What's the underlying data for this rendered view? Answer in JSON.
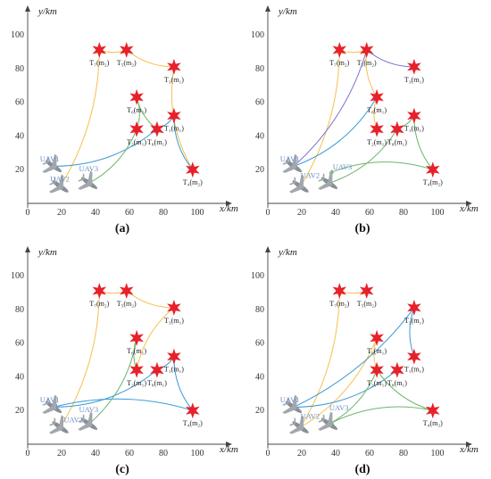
{
  "axes": {
    "xlabel": "x/km",
    "ylabel": "y/km",
    "xticks": [
      0,
      20,
      40,
      60,
      80,
      100
    ],
    "yticks": [
      20,
      40,
      60,
      80,
      100
    ]
  },
  "targets": [
    {
      "id": "T7",
      "label": "T₇(m₂)",
      "x": 37,
      "y": 91
    },
    {
      "id": "T5",
      "label": "T₅(m₂)",
      "x": 53,
      "y": 91
    },
    {
      "id": "T3",
      "label": "T₃(m₁)",
      "x": 81,
      "y": 81
    },
    {
      "id": "T6",
      "label": "T₆(m₁)",
      "x": 59,
      "y": 63
    },
    {
      "id": "T1",
      "label": "T₁(m₁)",
      "x": 81,
      "y": 52
    },
    {
      "id": "T2",
      "label": "T₂(m₁)",
      "x": 59,
      "y": 44
    },
    {
      "id": "T8",
      "label": "T₈(m₁)",
      "x": 71,
      "y": 44
    },
    {
      "id": "T4",
      "label": "T₄(m₂)",
      "x": 92,
      "y": 20
    }
  ],
  "uavs": [
    {
      "id": "U1",
      "label": "UAV1",
      "x": 10,
      "y": 22
    },
    {
      "id": "U2",
      "label": "UAV2",
      "x": 14,
      "y": 10
    },
    {
      "id": "U3",
      "label": "UAV3",
      "x": 31,
      "y": 12
    }
  ],
  "colors": {
    "yellow": "#f5c04a",
    "blue": "#3a9ad9",
    "green": "#6bb56b",
    "purple": "#7b6fd1",
    "star": "#e8202a"
  },
  "panels": [
    {
      "caption": "(a)",
      "uav_labels": [
        {
          "text": "UAV1",
          "x": 2,
          "y": 25
        },
        {
          "text": "UAV2",
          "x": 8,
          "y": 13
        },
        {
          "text": "UAV3",
          "x": 25,
          "y": 19
        }
      ],
      "routes": [
        {
          "color": "yellow",
          "pts": [
            [
              14,
              10
            ],
            [
              37,
              91
            ],
            [
              53,
              91
            ],
            [
              81,
              81
            ],
            [
              92,
              20
            ]
          ]
        },
        {
          "color": "blue",
          "pts": [
            [
              10,
              22
            ],
            [
              71,
              44
            ],
            [
              81,
              52
            ],
            [
              92,
              20
            ]
          ]
        },
        {
          "color": "green",
          "pts": [
            [
              31,
              12
            ],
            [
              59,
              44
            ],
            [
              59,
              63
            ],
            [
              71,
              44
            ]
          ]
        }
      ]
    },
    {
      "caption": "(b)",
      "uav_labels": [
        {
          "text": "UAV1",
          "x": 2,
          "y": 25
        },
        {
          "text": "UAV2",
          "x": 14,
          "y": 15
        },
        {
          "text": "UAV3",
          "x": 33,
          "y": 20
        }
      ],
      "routes": [
        {
          "color": "yellow",
          "pts": [
            [
              14,
              10
            ],
            [
              37,
              91
            ],
            [
              53,
              91
            ],
            [
              59,
              63
            ],
            [
              59,
              44
            ]
          ]
        },
        {
          "color": "purple",
          "pts": [
            [
              10,
              22
            ],
            [
              53,
              91
            ],
            [
              81,
              81
            ]
          ]
        },
        {
          "color": "blue",
          "pts": [
            [
              10,
              22
            ],
            [
              59,
              63
            ]
          ]
        },
        {
          "color": "green",
          "pts": [
            [
              31,
              12
            ],
            [
              71,
              44
            ],
            [
              81,
              52
            ],
            [
              92,
              20
            ],
            [
              31,
              18
            ]
          ]
        }
      ]
    },
    {
      "caption": "(c)",
      "uav_labels": [
        {
          "text": "UAV1",
          "x": 2,
          "y": 25
        },
        {
          "text": "UAV2",
          "x": 16,
          "y": 13
        },
        {
          "text": "UAV3",
          "x": 25,
          "y": 19
        }
      ],
      "routes": [
        {
          "color": "yellow",
          "pts": [
            [
              14,
              10
            ],
            [
              37,
              91
            ],
            [
              53,
              91
            ],
            [
              81,
              81
            ],
            [
              59,
              44
            ]
          ]
        },
        {
          "color": "blue",
          "pts": [
            [
              10,
              22
            ],
            [
              71,
              44
            ],
            [
              81,
              52
            ],
            [
              92,
              20
            ],
            [
              10,
              22
            ]
          ]
        },
        {
          "color": "green",
          "pts": [
            [
              31,
              12
            ],
            [
              59,
              63
            ],
            [
              59,
              44
            ]
          ]
        }
      ]
    },
    {
      "caption": "(d)",
      "uav_labels": [
        {
          "text": "UAV1",
          "x": 2,
          "y": 25
        },
        {
          "text": "UAV2",
          "x": 14,
          "y": 15
        },
        {
          "text": "UAV3",
          "x": 31,
          "y": 20
        }
      ],
      "routes": [
        {
          "color": "yellow",
          "pts": [
            [
              14,
              10
            ],
            [
              37,
              91
            ],
            [
              53,
              91
            ]
          ]
        },
        {
          "color": "yellow",
          "pts": [
            [
              14,
              10
            ],
            [
              59,
              63
            ],
            [
              59,
              44
            ]
          ]
        },
        {
          "color": "blue",
          "pts": [
            [
              10,
              22
            ],
            [
              81,
              81
            ],
            [
              81,
              52
            ]
          ]
        },
        {
          "color": "blue",
          "pts": [
            [
              10,
              22
            ],
            [
              71,
              44
            ]
          ]
        },
        {
          "color": "green",
          "pts": [
            [
              31,
              12
            ],
            [
              59,
              44
            ],
            [
              92,
              20
            ],
            [
              31,
              12
            ]
          ]
        }
      ]
    }
  ]
}
